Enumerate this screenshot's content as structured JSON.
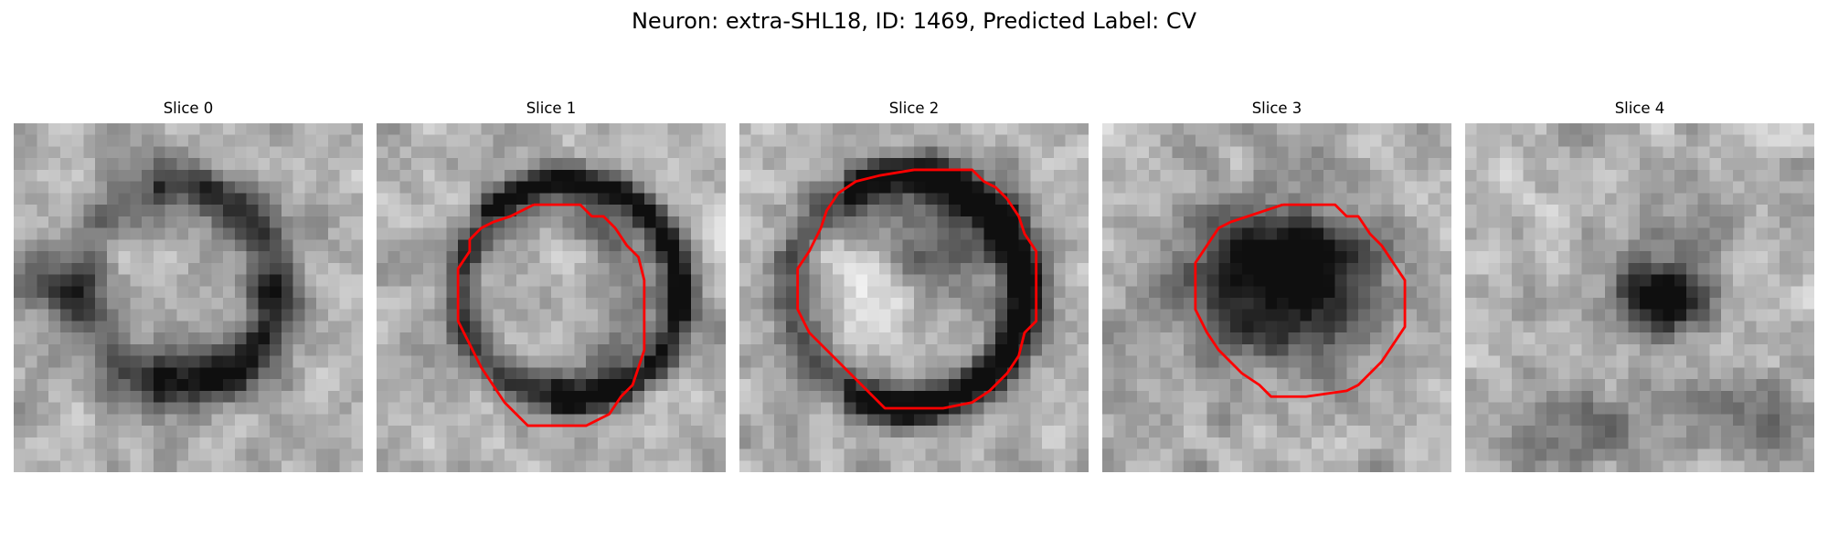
{
  "figure": {
    "title": "Neuron: extra-SHL18, ID: 1469, Predicted Label: CV"
  },
  "panels": [
    {
      "title": "Slice 0",
      "has_contour": false,
      "colormap": "grayscale"
    },
    {
      "title": "Slice 1",
      "has_contour": true,
      "colormap": "grayscale"
    },
    {
      "title": "Slice 2",
      "has_contour": true,
      "colormap": "grayscale"
    },
    {
      "title": "Slice 3",
      "has_contour": true,
      "colormap": "grayscale"
    },
    {
      "title": "Slice 4",
      "has_contour": false,
      "colormap": "grayscale"
    }
  ],
  "colors": {
    "contour": "#ff0000",
    "background": "#ffffff"
  }
}
